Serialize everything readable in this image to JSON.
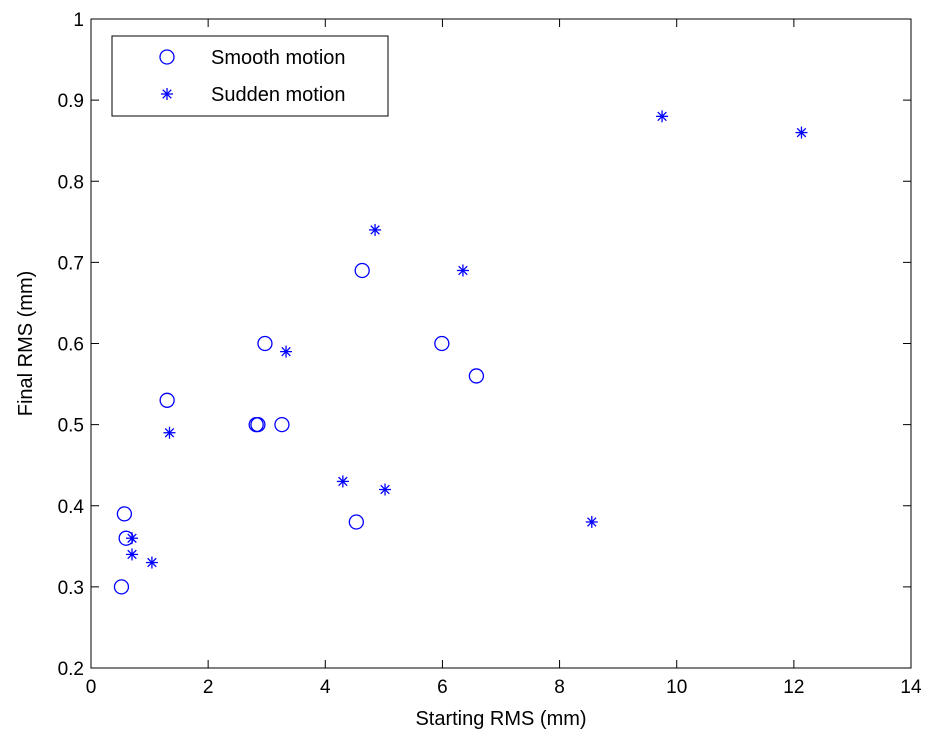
{
  "chart_data": {
    "type": "scatter",
    "title": "",
    "xlabel": "Starting RMS (mm)",
    "ylabel": "Final RMS (mm)",
    "xlim": [
      0,
      14
    ],
    "ylim": [
      0.2,
      1
    ],
    "xticks": [
      0,
      2,
      4,
      6,
      8,
      10,
      12,
      14
    ],
    "yticks": [
      0.2,
      0.3,
      0.4,
      0.5,
      0.6,
      0.7,
      0.8,
      0.9,
      1
    ],
    "xtick_labels": [
      "0",
      "2",
      "4",
      "6",
      "8",
      "10",
      "12",
      "14"
    ],
    "ytick_labels": [
      "0.2",
      "0.3",
      "0.4",
      "0.5",
      "0.6",
      "0.7",
      "0.8",
      "0.9",
      "1"
    ],
    "grid": false,
    "legend_position": "top-left",
    "marker_color": "#0000ff",
    "series": [
      {
        "name": "Smooth motion",
        "marker": "circle",
        "points": [
          {
            "x": 0.52,
            "y": 0.3
          },
          {
            "x": 0.57,
            "y": 0.39
          },
          {
            "x": 0.6,
            "y": 0.36
          },
          {
            "x": 1.3,
            "y": 0.53
          },
          {
            "x": 2.82,
            "y": 0.5
          },
          {
            "x": 2.85,
            "y": 0.5
          },
          {
            "x": 2.97,
            "y": 0.6
          },
          {
            "x": 3.26,
            "y": 0.5
          },
          {
            "x": 4.53,
            "y": 0.38
          },
          {
            "x": 4.63,
            "y": 0.69
          },
          {
            "x": 5.99,
            "y": 0.6
          },
          {
            "x": 6.58,
            "y": 0.56
          }
        ]
      },
      {
        "name": "Sudden motion",
        "marker": "asterisk",
        "points": [
          {
            "x": 0.7,
            "y": 0.36
          },
          {
            "x": 0.7,
            "y": 0.34
          },
          {
            "x": 1.04,
            "y": 0.33
          },
          {
            "x": 1.34,
            "y": 0.49
          },
          {
            "x": 3.33,
            "y": 0.59
          },
          {
            "x": 4.3,
            "y": 0.43
          },
          {
            "x": 4.85,
            "y": 0.74
          },
          {
            "x": 5.02,
            "y": 0.42
          },
          {
            "x": 6.35,
            "y": 0.69
          },
          {
            "x": 8.55,
            "y": 0.38
          },
          {
            "x": 9.75,
            "y": 0.88
          },
          {
            "x": 12.13,
            "y": 0.86
          }
        ]
      }
    ]
  }
}
